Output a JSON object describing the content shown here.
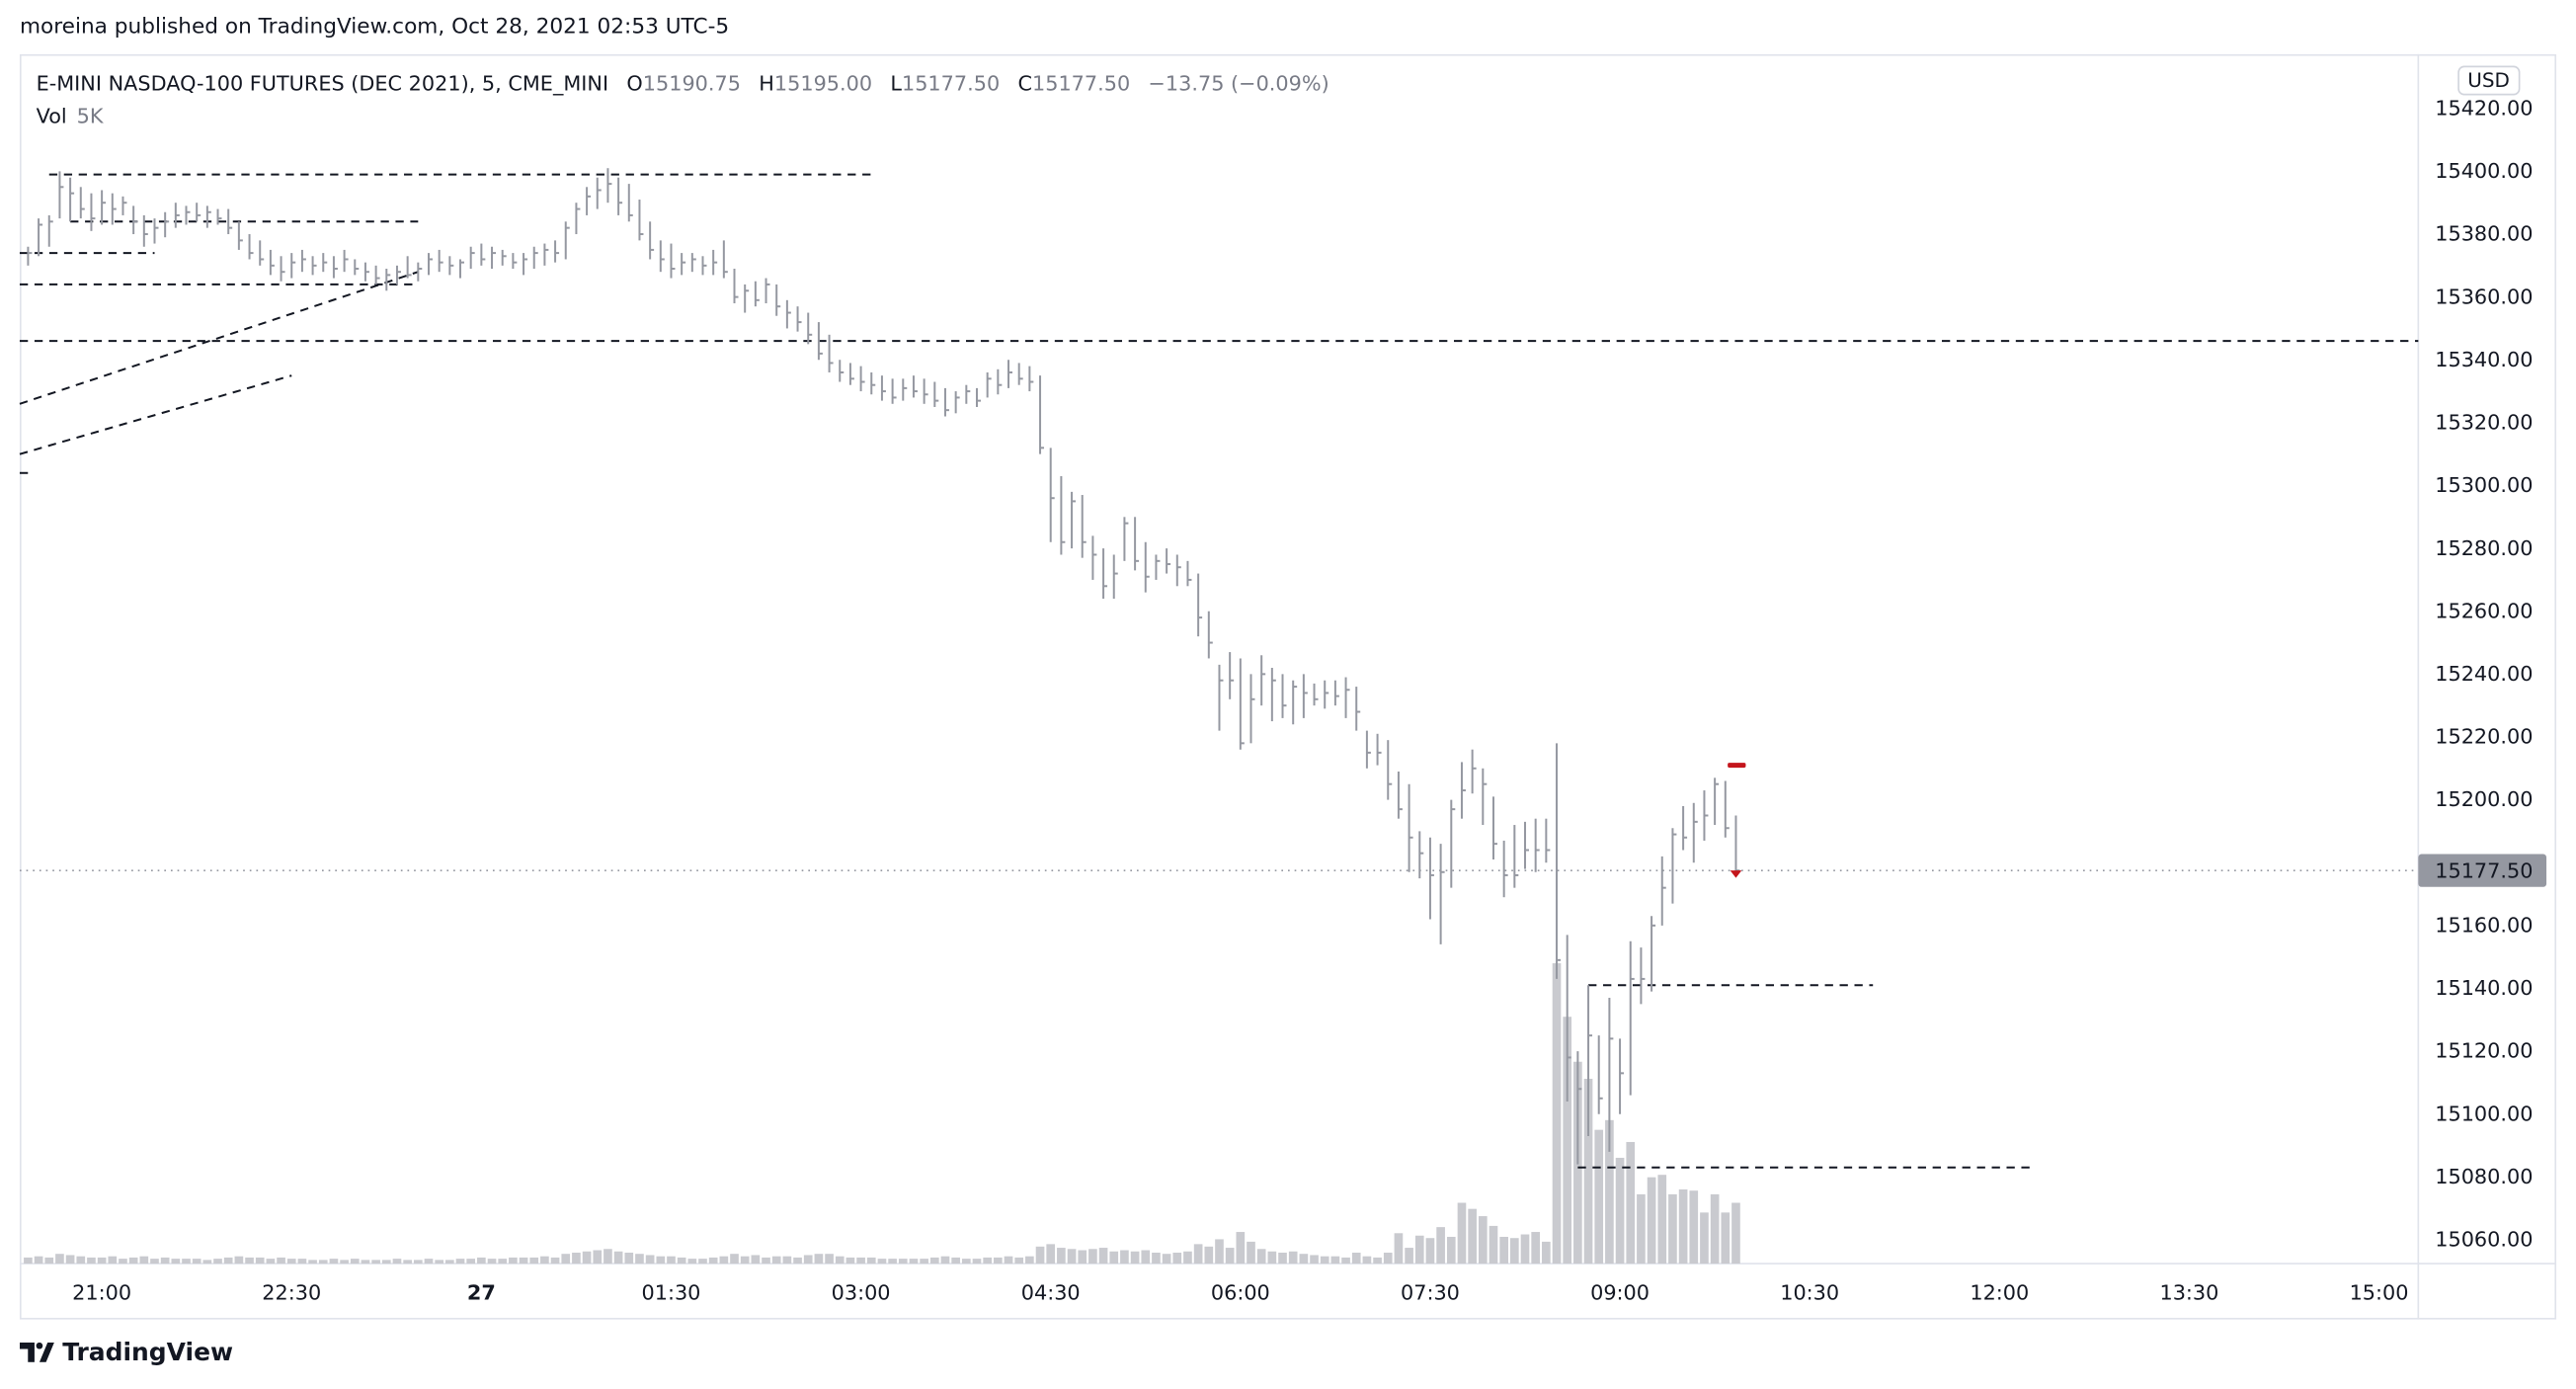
{
  "header": {
    "published": "moreina published on TradingView.com, Oct 28, 2021 02:53 UTC-5"
  },
  "legend": {
    "symbol": "E-MINI NASDAQ-100 FUTURES (DEC 2021), 5, CME_MINI",
    "o_label": "O",
    "o": "15190.75",
    "h_label": "H",
    "h": "15195.00",
    "l_label": "L",
    "l": "15177.50",
    "c_label": "C",
    "c": "15177.50",
    "change": "−13.75 (−0.09%)",
    "vol_label": "Vol",
    "vol": "5K"
  },
  "currency": "USD",
  "footer": {
    "brand": "TradingView"
  },
  "colors": {
    "bar": "#9598a1",
    "volume": "#c9cacf",
    "drawing": "#131722",
    "marker": "#c4161c",
    "last_price_bg": "#9598a1"
  },
  "chart_data": {
    "type": "bar",
    "bar_style": "hlc",
    "interval": "5",
    "ylim": [
      15050,
      15425
    ],
    "y_ticks": [
      "15420.00",
      "15400.00",
      "15380.00",
      "15360.00",
      "15340.00",
      "15320.00",
      "15300.00",
      "15280.00",
      "15260.00",
      "15240.00",
      "15220.00",
      "15200.00",
      "15160.00",
      "15140.00",
      "15120.00",
      "15100.00",
      "15080.00",
      "15060.00"
    ],
    "x_ticks": [
      {
        "t": "21:00",
        "label": "21:00"
      },
      {
        "t": "22:30",
        "label": "22:30"
      },
      {
        "t": "00:00",
        "label": "27",
        "bold": true
      },
      {
        "t": "01:30",
        "label": "01:30"
      },
      {
        "t": "03:00",
        "label": "03:00"
      },
      {
        "t": "04:30",
        "label": "04:30"
      },
      {
        "t": "06:00",
        "label": "06:00"
      },
      {
        "t": "07:30",
        "label": "07:30"
      },
      {
        "t": "09:00",
        "label": "09:00"
      },
      {
        "t": "10:30",
        "label": "10:30"
      },
      {
        "t": "12:00",
        "label": "12:00"
      },
      {
        "t": "13:30",
        "label": "13:30"
      },
      {
        "t": "15:00",
        "label": "15:00"
      }
    ],
    "last_price": 15177.5,
    "last_price_label": "15177.50",
    "bars_columns": [
      "time",
      "high",
      "low",
      "close",
      "volume_k"
    ],
    "bars": [
      [
        "20:25",
        15376,
        15370,
        15374,
        0.5
      ],
      [
        "20:30",
        15385,
        15373,
        15383,
        0.6
      ],
      [
        "20:35",
        15386,
        15376,
        15384,
        0.5
      ],
      [
        "20:40",
        15400,
        15385,
        15395,
        0.8
      ],
      [
        "20:45",
        15398,
        15384,
        15393,
        0.7
      ],
      [
        "20:50",
        15395,
        15385,
        15388,
        0.6
      ],
      [
        "20:55",
        15393,
        15381,
        15385,
        0.5
      ],
      [
        "21:00",
        15394,
        15383,
        15390,
        0.5
      ],
      [
        "21:05",
        15393,
        15383,
        15388,
        0.6
      ],
      [
        "21:10",
        15392,
        15386,
        15390,
        0.4
      ],
      [
        "21:15",
        15389,
        15380,
        15384,
        0.5
      ],
      [
        "21:20",
        15386,
        15376,
        15380,
        0.6
      ],
      [
        "21:25",
        15385,
        15377,
        15382,
        0.4
      ],
      [
        "21:30",
        15387,
        15379,
        15384,
        0.5
      ],
      [
        "21:35",
        15390,
        15382,
        15386,
        0.4
      ],
      [
        "21:40",
        15389,
        15383,
        15387,
        0.4
      ],
      [
        "21:45",
        15390,
        15384,
        15386,
        0.4
      ],
      [
        "21:50",
        15389,
        15382,
        15387,
        0.3
      ],
      [
        "21:55",
        15388,
        15383,
        15385,
        0.4
      ],
      [
        "22:00",
        15388,
        15380,
        15382,
        0.5
      ],
      [
        "22:05",
        15384,
        15375,
        15378,
        0.6
      ],
      [
        "22:10",
        15380,
        15372,
        15374,
        0.5
      ],
      [
        "22:15",
        15378,
        15370,
        15372,
        0.5
      ],
      [
        "22:20",
        15375,
        15367,
        15370,
        0.4
      ],
      [
        "22:25",
        15373,
        15365,
        15368,
        0.5
      ],
      [
        "22:30",
        15374,
        15366,
        15371,
        0.4
      ],
      [
        "22:35",
        15375,
        15368,
        15372,
        0.4
      ],
      [
        "22:40",
        15373,
        15367,
        15370,
        0.3
      ],
      [
        "22:45",
        15374,
        15368,
        15371,
        0.3
      ],
      [
        "22:50",
        15373,
        15366,
        15369,
        0.4
      ],
      [
        "22:55",
        15375,
        15368,
        15372,
        0.3
      ],
      [
        "23:00",
        15372,
        15367,
        15369,
        0.4
      ],
      [
        "23:05",
        15371,
        15365,
        15368,
        0.3
      ],
      [
        "23:10",
        15370,
        15364,
        15366,
        0.3
      ],
      [
        "23:15",
        15369,
        15362,
        15367,
        0.3
      ],
      [
        "23:20",
        15370,
        15364,
        15368,
        0.4
      ],
      [
        "23:25",
        15373,
        15366,
        15367,
        0.3
      ],
      [
        "23:30",
        15371,
        15365,
        15369,
        0.3
      ],
      [
        "23:35",
        15374,
        15367,
        15372,
        0.4
      ],
      [
        "23:40",
        15375,
        15368,
        15371,
        0.3
      ],
      [
        "23:45",
        15373,
        15367,
        15370,
        0.3
      ],
      [
        "23:50",
        15372,
        15366,
        15371,
        0.4
      ],
      [
        "23:55",
        15376,
        15369,
        15374,
        0.4
      ],
      [
        "00:00",
        15377,
        15370,
        15372,
        0.5
      ],
      [
        "00:05",
        15376,
        15369,
        15374,
        0.4
      ],
      [
        "00:10",
        15375,
        15370,
        15373,
        0.4
      ],
      [
        "00:15",
        15374,
        15369,
        15371,
        0.5
      ],
      [
        "00:20",
        15374,
        15367,
        15372,
        0.5
      ],
      [
        "00:25",
        15376,
        15369,
        15374,
        0.5
      ],
      [
        "00:30",
        15377,
        15370,
        15375,
        0.6
      ],
      [
        "00:35",
        15378,
        15371,
        15374,
        0.5
      ],
      [
        "00:40",
        15384,
        15372,
        15382,
        0.8
      ],
      [
        "00:45",
        15390,
        15380,
        15388,
        0.9
      ],
      [
        "00:50",
        15395,
        15386,
        15392,
        1.0
      ],
      [
        "00:55",
        15398,
        15388,
        15394,
        1.1
      ],
      [
        "01:00",
        15401,
        15390,
        15396,
        1.2
      ],
      [
        "01:05",
        15398,
        15386,
        15390,
        1.0
      ],
      [
        "01:10",
        15396,
        15384,
        15386,
        0.9
      ],
      [
        "01:15",
        15391,
        15378,
        15380,
        0.8
      ],
      [
        "01:20",
        15384,
        15372,
        15375,
        0.7
      ],
      [
        "01:25",
        15378,
        15368,
        15372,
        0.6
      ],
      [
        "01:30",
        15377,
        15366,
        15369,
        0.6
      ],
      [
        "01:35",
        15374,
        15367,
        15371,
        0.5
      ],
      [
        "01:40",
        15374,
        15368,
        15372,
        0.4
      ],
      [
        "01:45",
        15373,
        15367,
        15370,
        0.4
      ],
      [
        "01:50",
        15375,
        15367,
        15371,
        0.5
      ],
      [
        "01:55",
        15378,
        15366,
        15368,
        0.6
      ],
      [
        "02:00",
        15369,
        15358,
        15360,
        0.8
      ],
      [
        "02:05",
        15364,
        15355,
        15362,
        0.6
      ],
      [
        "02:10",
        15365,
        15357,
        15359,
        0.7
      ],
      [
        "02:15",
        15366,
        15358,
        15364,
        0.5
      ],
      [
        "02:20",
        15364,
        15354,
        15357,
        0.6
      ],
      [
        "02:25",
        15359,
        15350,
        15355,
        0.6
      ],
      [
        "02:30",
        15357,
        15349,
        15352,
        0.5
      ],
      [
        "02:35",
        15355,
        15345,
        15348,
        0.7
      ],
      [
        "02:40",
        15352,
        15340,
        15342,
        0.8
      ],
      [
        "02:45",
        15348,
        15336,
        15339,
        0.8
      ],
      [
        "02:50",
        15340,
        15333,
        15336,
        0.6
      ],
      [
        "02:55",
        15339,
        15332,
        15334,
        0.5
      ],
      [
        "03:00",
        15338,
        15330,
        15333,
        0.5
      ],
      [
        "03:05",
        15336,
        15329,
        15332,
        0.5
      ],
      [
        "03:10",
        15335,
        15327,
        15330,
        0.4
      ],
      [
        "03:15",
        15334,
        15326,
        15328,
        0.4
      ],
      [
        "03:20",
        15334,
        15327,
        15331,
        0.4
      ],
      [
        "03:25",
        15335,
        15328,
        15330,
        0.4
      ],
      [
        "03:30",
        15334,
        15326,
        15329,
        0.4
      ],
      [
        "03:35",
        15333,
        15325,
        15327,
        0.5
      ],
      [
        "03:40",
        15331,
        15322,
        15324,
        0.6
      ],
      [
        "03:45",
        15330,
        15323,
        15328,
        0.5
      ],
      [
        "03:50",
        15332,
        15326,
        15330,
        0.4
      ],
      [
        "03:55",
        15331,
        15325,
        15327,
        0.4
      ],
      [
        "04:00",
        15336,
        15328,
        15334,
        0.5
      ],
      [
        "04:05",
        15337,
        15329,
        15332,
        0.5
      ],
      [
        "04:10",
        15340,
        15331,
        15336,
        0.6
      ],
      [
        "04:15",
        15339,
        15332,
        15334,
        0.5
      ],
      [
        "04:20",
        15338,
        15330,
        15333,
        0.6
      ],
      [
        "04:25",
        15335,
        15310,
        15312,
        1.4
      ],
      [
        "04:30",
        15312,
        15282,
        15296,
        1.6
      ],
      [
        "04:35",
        15303,
        15278,
        15282,
        1.3
      ],
      [
        "04:40",
        15298,
        15280,
        15295,
        1.2
      ],
      [
        "04:45",
        15297,
        15277,
        15282,
        1.1
      ],
      [
        "04:50",
        15284,
        15270,
        15278,
        1.2
      ],
      [
        "04:55",
        15280,
        15264,
        15268,
        1.3
      ],
      [
        "05:00",
        15278,
        15264,
        15272,
        1.0
      ],
      [
        "05:05",
        15290,
        15276,
        15288,
        1.1
      ],
      [
        "05:10",
        15290,
        15273,
        15276,
        1.0
      ],
      [
        "05:15",
        15282,
        15266,
        15271,
        1.1
      ],
      [
        "05:20",
        15278,
        15270,
        15276,
        0.9
      ],
      [
        "05:25",
        15280,
        15272,
        15275,
        0.8
      ],
      [
        "05:30",
        15278,
        15268,
        15274,
        0.9
      ],
      [
        "05:35",
        15276,
        15268,
        15270,
        1.0
      ],
      [
        "05:40",
        15272,
        15252,
        15258,
        1.6
      ],
      [
        "05:45",
        15260,
        15245,
        15250,
        1.4
      ],
      [
        "05:50",
        15243,
        15222,
        15238,
        2.0
      ],
      [
        "05:55",
        15247,
        15232,
        15238,
        1.3
      ],
      [
        "06:00",
        15245,
        15216,
        15218,
        2.6
      ],
      [
        "06:05",
        15240,
        15218,
        15232,
        1.8
      ],
      [
        "06:10",
        15246,
        15230,
        15240,
        1.2
      ],
      [
        "06:15",
        15242,
        15225,
        15238,
        1.0
      ],
      [
        "06:20",
        15240,
        15226,
        15230,
        0.9
      ],
      [
        "06:25",
        15238,
        15224,
        15236,
        1.0
      ],
      [
        "06:30",
        15240,
        15226,
        15234,
        0.8
      ],
      [
        "06:35",
        15237,
        15230,
        15232,
        0.7
      ],
      [
        "06:40",
        15238,
        15229,
        15234,
        0.6
      ],
      [
        "06:45",
        15238,
        15230,
        15233,
        0.6
      ],
      [
        "06:50",
        15239,
        15226,
        15235,
        0.5
      ],
      [
        "06:55",
        15236,
        15222,
        15228,
        0.9
      ],
      [
        "07:00",
        15222,
        15210,
        15215,
        0.6
      ],
      [
        "07:05",
        15221,
        15211,
        15215,
        0.5
      ],
      [
        "07:10",
        15219,
        15200,
        15205,
        0.9
      ],
      [
        "07:15",
        15209,
        15194,
        15197,
        2.5
      ],
      [
        "07:20",
        15205,
        15177,
        15188,
        1.3
      ],
      [
        "07:25",
        15190,
        15175,
        15183,
        2.3
      ],
      [
        "07:30",
        15188,
        15162,
        15176,
        2.1
      ],
      [
        "07:35",
        15186,
        15154,
        15177,
        3.0
      ],
      [
        "07:40",
        15200,
        15172,
        15197,
        2.2
      ],
      [
        "07:45",
        15212,
        15194,
        15203,
        5.0
      ],
      [
        "07:50",
        15216,
        15202,
        15210,
        4.5
      ],
      [
        "07:55",
        15210,
        15192,
        15205,
        3.9
      ],
      [
        "08:00",
        15201,
        15181,
        15186,
        3.1
      ],
      [
        "08:05",
        15187,
        15169,
        15176,
        2.2
      ],
      [
        "08:10",
        15192,
        15172,
        15176,
        2.1
      ],
      [
        "08:15",
        15193,
        15178,
        15184,
        2.4
      ],
      [
        "08:20",
        15194,
        15177,
        15184,
        2.6
      ],
      [
        "08:25",
        15194,
        15180,
        15184,
        1.8
      ],
      [
        "08:30",
        15218,
        15143,
        15149,
        24.7
      ],
      [
        "08:35",
        15157,
        15104,
        15118,
        20.3
      ],
      [
        "08:40",
        15120,
        15084,
        15108,
        16.6
      ],
      [
        "08:45",
        15141,
        15093,
        15125,
        15.2
      ],
      [
        "08:50",
        15125,
        15100,
        15105,
        11.0
      ],
      [
        "08:55",
        15137,
        15088,
        15124,
        11.8
      ],
      [
        "09:00",
        15124,
        15100,
        15113,
        8.7
      ],
      [
        "09:05",
        15155,
        15106,
        15143,
        10.0
      ],
      [
        "09:10",
        15153,
        15135,
        15143,
        5.7
      ],
      [
        "09:15",
        15163,
        15139,
        15160,
        7.1
      ],
      [
        "09:20",
        15182,
        15160,
        15172,
        7.3
      ],
      [
        "09:25",
        15191,
        15167,
        15189,
        5.7
      ],
      [
        "09:30",
        15198,
        15184,
        15188,
        6.1
      ],
      [
        "09:35",
        15199,
        15180,
        15193,
        6.0
      ],
      [
        "09:40",
        15203,
        15187,
        15195,
        4.2
      ],
      [
        "09:45",
        15207,
        15192,
        15205,
        5.7
      ],
      [
        "09:50",
        15206,
        15188,
        15191,
        4.2
      ],
      [
        "09:55",
        15195,
        15177.5,
        15177.5,
        5.0
      ]
    ],
    "drawings": [
      {
        "kind": "hline",
        "price": 15399,
        "from": "20:35",
        "to": "03:05"
      },
      {
        "kind": "hline",
        "price": 15384,
        "from": "20:45",
        "to": "23:30"
      },
      {
        "kind": "hline",
        "price": 15374,
        "from": "20:20",
        "to": "21:25"
      },
      {
        "kind": "hline",
        "price": 15364,
        "from": "20:20",
        "to": "23:30"
      },
      {
        "kind": "hline",
        "price": 15346,
        "from": "20:20",
        "extend": "right"
      },
      {
        "kind": "hline",
        "price": 15141,
        "from": "08:45",
        "to": "11:00"
      },
      {
        "kind": "hline",
        "price": 15083,
        "from": "08:40",
        "to": "12:15"
      },
      {
        "kind": "trend",
        "p1": 15326,
        "t1": "20:20",
        "p2": 15368,
        "t2": "23:30"
      },
      {
        "kind": "trend",
        "p1": 15310,
        "t1": "20:20",
        "p2": 15335,
        "t2": "22:30"
      },
      {
        "kind": "hline",
        "price": 15304,
        "from": "20:20",
        "to": "20:25"
      }
    ],
    "markers": [
      {
        "icon": "red-dash-marker-icon",
        "price": 15211,
        "t": "09:55"
      },
      {
        "icon": "red-down-arrow-icon",
        "price": 15177.5,
        "t": "09:55"
      }
    ]
  }
}
